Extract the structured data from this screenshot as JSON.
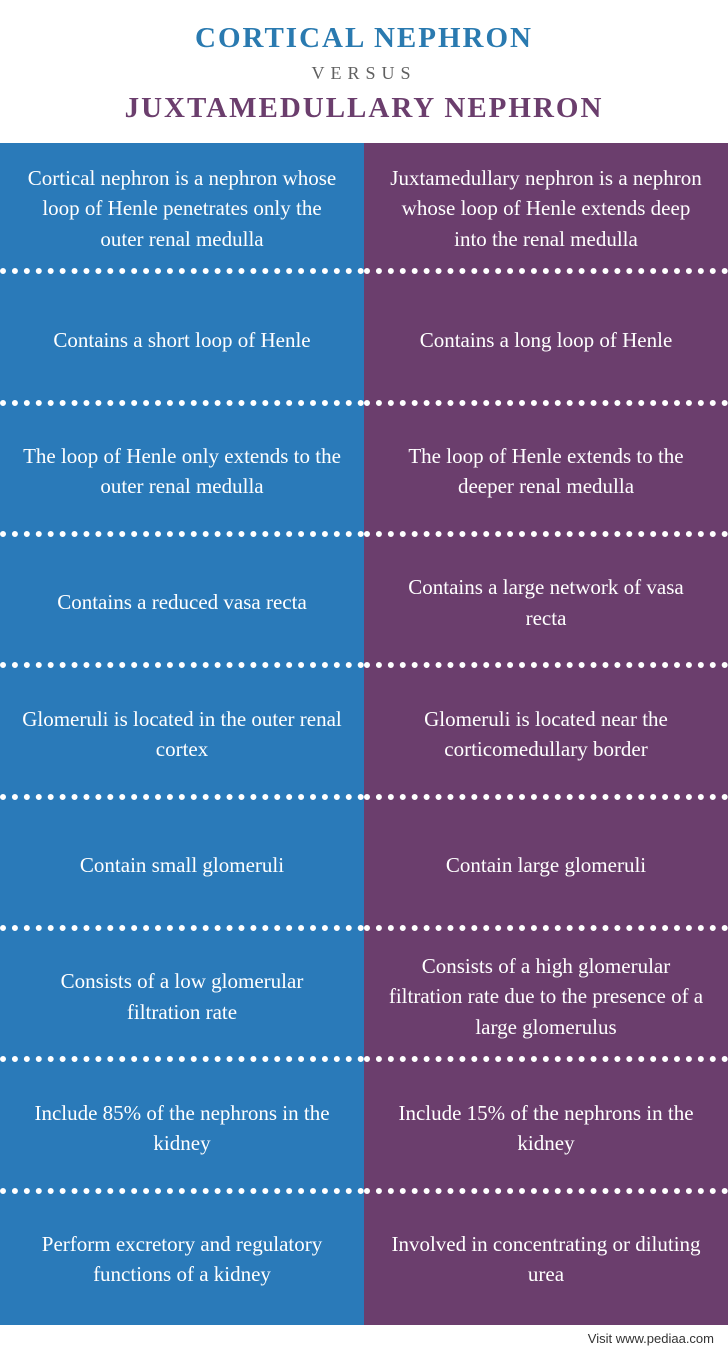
{
  "header": {
    "title_top": "CORTICAL NEPHRON",
    "versus": "VERSUS",
    "title_bottom": "JUXTAMEDULLARY NEPHRON"
  },
  "colors": {
    "left_column": "#2a7ab9",
    "right_column": "#6b3e6d",
    "title_top": "#2a7ab0",
    "title_bottom": "#6b3e6d",
    "versus": "#606060",
    "cell_text": "#ffffff",
    "divider": "#ffffff"
  },
  "typography": {
    "title_fontsize": 29,
    "versus_fontsize": 18,
    "cell_fontsize": 21,
    "footer_fontsize": 13,
    "title_letter_spacing": 2,
    "versus_letter_spacing": 6
  },
  "rows": [
    {
      "left": "Cortical nephron is a nephron whose loop of Henle penetrates only the outer renal medulla",
      "right": "Juxtamedullary nephron is a nephron whose loop of Henle extends deep into the renal medulla"
    },
    {
      "left": "Contains a short loop of Henle",
      "right": "Contains a long loop of Henle"
    },
    {
      "left": "The loop of Henle only extends to the outer renal medulla",
      "right": "The loop of Henle extends to the deeper renal medulla"
    },
    {
      "left": "Contains a reduced vasa recta",
      "right": "Contains a large network of vasa recta"
    },
    {
      "left": "Glomeruli is located in the outer renal cortex",
      "right": "Glomeruli is located near the corticomedullary border"
    },
    {
      "left": "Contain small glomeruli",
      "right": "Contain large glomeruli"
    },
    {
      "left": "Consists of a low glomerular filtration rate",
      "right": "Consists of a high glomerular filtration rate due to the presence of a large glomerulus"
    },
    {
      "left": "Include 85% of the nephrons in the kidney",
      "right": "Include 15% of the nephrons in the kidney"
    },
    {
      "left": "Perform excretory and regulatory functions of a kidney",
      "right": "Involved in concentrating or diluting urea"
    }
  ],
  "footer": {
    "text": "Visit www.pediaa.com"
  }
}
